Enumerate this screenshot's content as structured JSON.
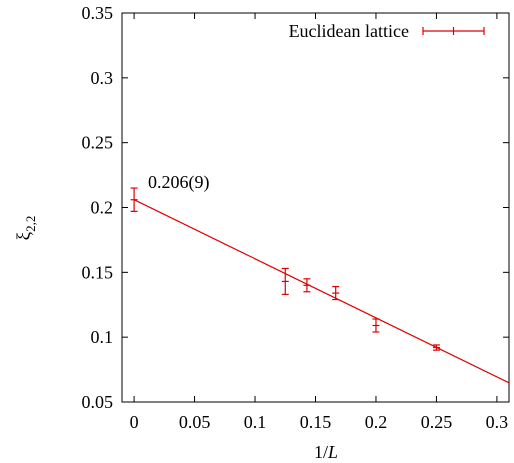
{
  "chart_data": {
    "type": "scatter",
    "xlabel": "1/L",
    "xlabel_parts": [
      "1/",
      "L"
    ],
    "ylabel": "ξ2,2",
    "ylabel_parts": [
      "ξ",
      "2,2"
    ],
    "xlim": [
      -0.01,
      0.31
    ],
    "ylim": [
      0.05,
      0.35
    ],
    "x_ticks": [
      0,
      0.05,
      0.1,
      0.15,
      0.2,
      0.25,
      0.3
    ],
    "x_tick_labels": [
      "0",
      "0.05",
      "0.1",
      "0.15",
      "0.2",
      "0.25",
      "0.3"
    ],
    "y_ticks": [
      0.05,
      0.1,
      0.15,
      0.2,
      0.25,
      0.3,
      0.35
    ],
    "y_tick_labels": [
      "0.05",
      "0.1",
      "0.15",
      "0.2",
      "0.25",
      "0.3",
      "0.35"
    ],
    "series": [
      {
        "name": "Euclidean lattice",
        "color": "#e00000",
        "x": [
          0,
          0.125,
          0.1429,
          0.1667,
          0.2,
          0.25
        ],
        "y": [
          0.206,
          0.143,
          0.14,
          0.134,
          0.109,
          0.092
        ],
        "yerr": [
          0.009,
          0.01,
          0.005,
          0.005,
          0.005,
          0.002
        ]
      }
    ],
    "fit_line": {
      "color": "#e00000",
      "intercept": 0.206,
      "slope": -0.4555
    },
    "annotations": [
      {
        "text": "0.206(9)",
        "x": 0.005,
        "y": 0.216
      }
    ],
    "legend_position": "top-right",
    "grid": false
  }
}
